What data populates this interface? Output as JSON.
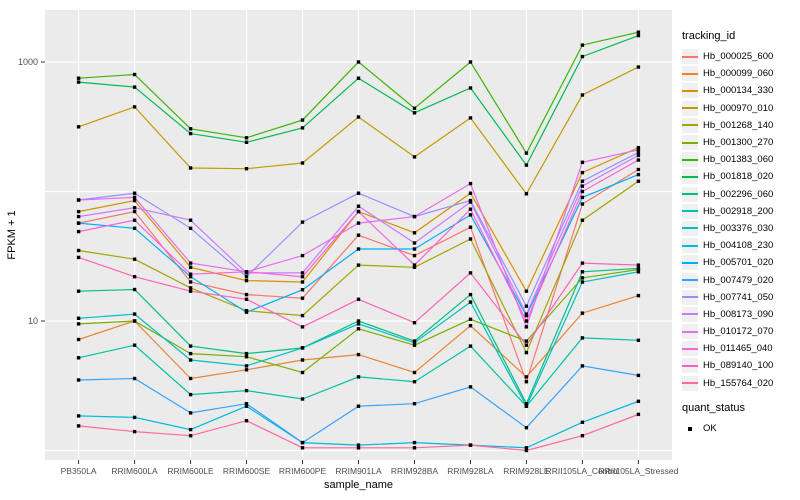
{
  "figure": {
    "background": "#ffffff",
    "panel_background": "#ebebeb",
    "grid_color": "#ffffff",
    "tick_color": "#333333",
    "tick_label_color": "#4d4d4d",
    "point_color": "#000000"
  },
  "chart_data": {
    "type": "line",
    "title": "",
    "xlabel": "sample_name",
    "ylabel": "FPKM + 1",
    "y_scale": "log10",
    "ylim": [
      1,
      2500
    ],
    "y_tick_labels": [
      "10",
      "1000"
    ],
    "y_tick_values": [
      10,
      1000
    ],
    "y_gridline_values": [
      1,
      10,
      100,
      1000
    ],
    "grid": true,
    "legend_position": "right",
    "categories": [
      "PB350LA",
      "RRIM600LA",
      "RRIM600LE",
      "RRIM600SE",
      "RRIM600PE",
      "RRIM901LA",
      "RRIM928BA",
      "RRIM928LA",
      "RRIM928LE",
      "RRII105LA_Control",
      "RRII105LA_Stressed"
    ],
    "series": [
      {
        "name": "Hb_000025_600",
        "color": "#F8766D",
        "values": [
          57,
          70,
          20,
          16,
          15,
          46,
          32,
          53,
          3.4,
          80,
          148
        ]
      },
      {
        "name": "Hb_000099_060",
        "color": "#EA8331",
        "values": [
          7.2,
          10,
          3.6,
          4.2,
          5.0,
          5.5,
          4.0,
          9.2,
          3.7,
          11.5,
          15.7
        ]
      },
      {
        "name": "Hb_000134_330",
        "color": "#D89000",
        "values": [
          70,
          85,
          26,
          20.5,
          20,
          70,
          48,
          97,
          17,
          140,
          218
        ]
      },
      {
        "name": "Hb_000970_010",
        "color": "#C09B00",
        "values": [
          316,
          450,
          152,
          150,
          166,
          376,
          185,
          370,
          96,
          556,
          915
        ]
      },
      {
        "name": "Hb_001268_140",
        "color": "#A3A500",
        "values": [
          35,
          30,
          18,
          12,
          11,
          27,
          26,
          43,
          5.7,
          60,
          120
        ]
      },
      {
        "name": "Hb_001300_270",
        "color": "#7CAE00",
        "values": [
          9.5,
          10,
          5.6,
          5.3,
          4.0,
          8.7,
          6.5,
          10.3,
          7.0,
          21.5,
          25
        ]
      },
      {
        "name": "Hb_001383_060",
        "color": "#39B600",
        "values": [
          750,
          800,
          305,
          260,
          356,
          1000,
          440,
          1000,
          198,
          1350,
          1700
        ]
      },
      {
        "name": "Hb_001818_020",
        "color": "#00BB4E",
        "values": [
          700,
          640,
          280,
          240,
          310,
          750,
          405,
          630,
          160,
          1100,
          1600
        ]
      },
      {
        "name": "Hb_002296_060",
        "color": "#00BF7D",
        "values": [
          17,
          17.5,
          6.4,
          5.6,
          6.2,
          10,
          7.0,
          16,
          2.3,
          24,
          25.5
        ]
      },
      {
        "name": "Hb_002918_200",
        "color": "#00C1A3",
        "values": [
          5.2,
          6.5,
          2.7,
          2.9,
          2.5,
          3.7,
          3.4,
          6.4,
          2.2,
          7.4,
          7.1
        ]
      },
      {
        "name": "Hb_003376_030",
        "color": "#00BFC4",
        "values": [
          10.5,
          11.3,
          5.0,
          4.5,
          6.2,
          9.5,
          6.8,
          14,
          2.2,
          20,
          24
        ]
      },
      {
        "name": "Hb_004108_230",
        "color": "#00BAE0",
        "values": [
          1.85,
          1.8,
          1.45,
          2.2,
          1.15,
          1.1,
          1.15,
          1.1,
          1.05,
          1.65,
          2.4
        ]
      },
      {
        "name": "Hb_005701_020",
        "color": "#00B0F6",
        "values": [
          57,
          52,
          22,
          11.7,
          17.4,
          36,
          36,
          66,
          11,
          90,
          135
        ]
      },
      {
        "name": "Hb_007479_020",
        "color": "#35A2FF",
        "values": [
          3.5,
          3.6,
          1.95,
          2.3,
          1.15,
          2.2,
          2.3,
          3.1,
          1.5,
          4.5,
          3.8
        ]
      },
      {
        "name": "Hb_007741_050",
        "color": "#9590FF",
        "values": [
          86,
          97,
          52,
          22,
          58,
          97,
          64,
          85,
          13,
          120,
          200
        ]
      },
      {
        "name": "Hb_008173_090",
        "color": "#C77CFF",
        "values": [
          64,
          75,
          60,
          23.5,
          23.5,
          77,
          40,
          83,
          11.3,
          110,
          190
        ]
      },
      {
        "name": "Hb_010172_070",
        "color": "#E76BF3",
        "values": [
          86,
          90,
          28,
          24,
          32,
          57,
          64,
          115,
          9,
          168,
          210
        ]
      },
      {
        "name": "Hb_011465_040",
        "color": "#FA62DB",
        "values": [
          49,
          60,
          23,
          24,
          22,
          70,
          27,
          73,
          10,
          100,
          175
        ]
      },
      {
        "name": "Hb_089140_100",
        "color": "#FF62BC",
        "values": [
          31,
          22,
          17,
          14.7,
          9.0,
          14.7,
          9.7,
          23.5,
          6.5,
          28,
          27
        ]
      },
      {
        "name": "Hb_155764_020",
        "color": "#FF6A98",
        "values": [
          1.55,
          1.4,
          1.3,
          1.7,
          1.05,
          1.05,
          1.05,
          1.1,
          1.0,
          1.3,
          1.9
        ]
      }
    ],
    "legend": {
      "title": "tracking_id"
    },
    "legend2": {
      "title": "quant_status",
      "items": [
        "OK"
      ]
    }
  }
}
